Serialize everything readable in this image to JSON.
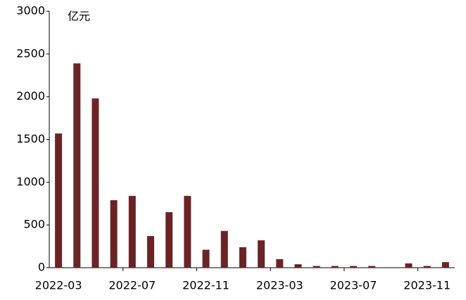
{
  "chart_data": {
    "type": "bar",
    "y_label": "亿元",
    "categories": [
      "2022-03",
      null,
      null,
      null,
      "2022-07",
      null,
      null,
      null,
      "2022-11",
      null,
      null,
      null,
      "2023-03",
      null,
      null,
      null,
      "2023-07",
      null,
      null,
      null,
      "2023-11",
      null
    ],
    "values": [
      1570,
      2390,
      1980,
      790,
      840,
      370,
      650,
      840,
      210,
      430,
      240,
      320,
      100,
      40,
      20,
      20,
      20,
      20,
      0,
      50,
      20,
      65
    ],
    "color": "#6b2426",
    "ylim": [
      0,
      3000
    ],
    "yticks": [
      0,
      500,
      1000,
      1500,
      2000,
      2500,
      3000
    ],
    "grid": false
  }
}
